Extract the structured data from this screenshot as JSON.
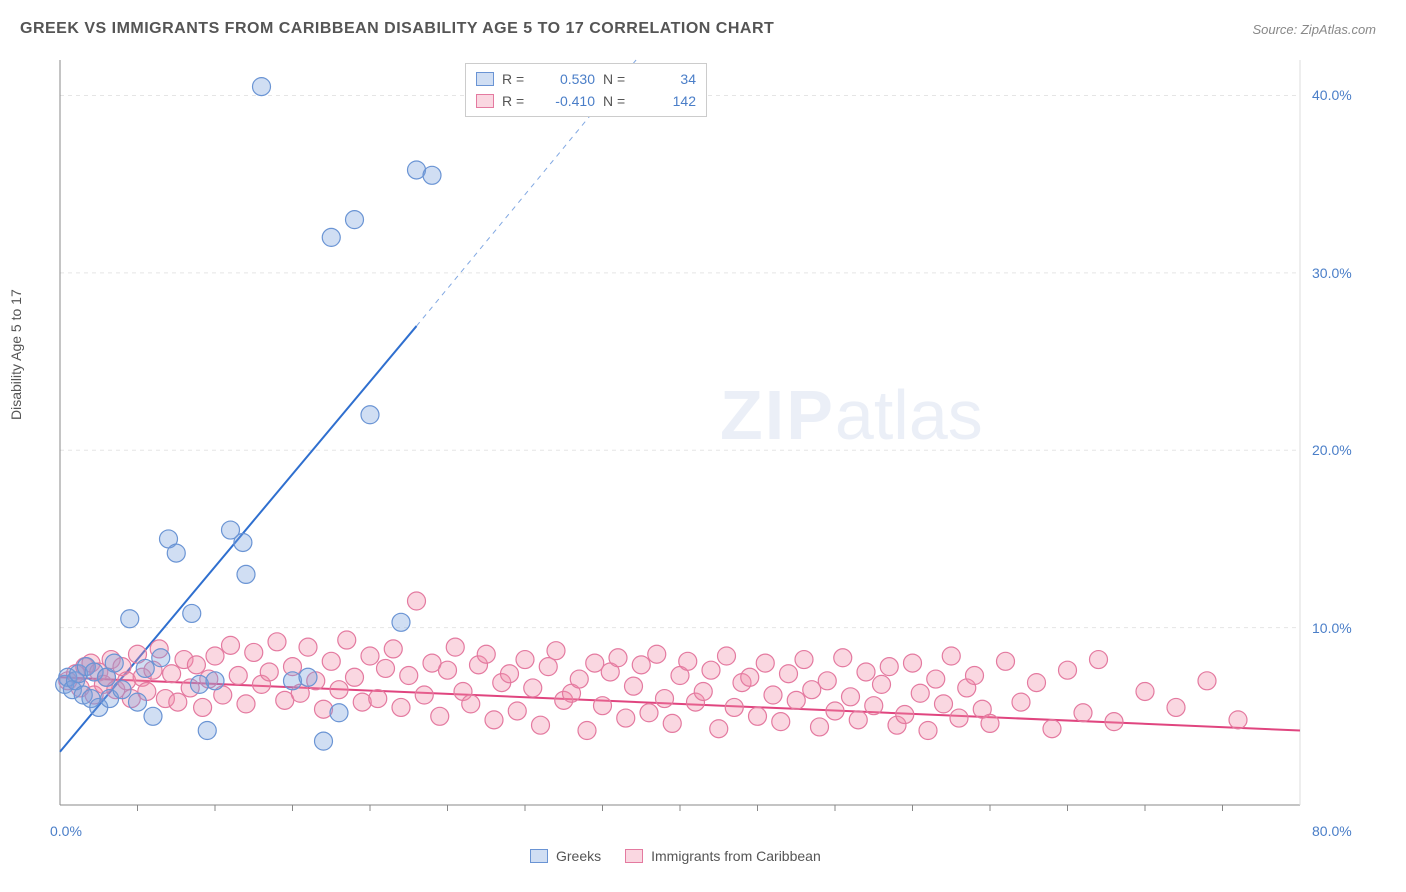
{
  "title": "GREEK VS IMMIGRANTS FROM CARIBBEAN DISABILITY AGE 5 TO 17 CORRELATION CHART",
  "source": "Source: ZipAtlas.com",
  "y_axis_label": "Disability Age 5 to 17",
  "watermark_zip": "ZIP",
  "watermark_atlas": "atlas",
  "chart": {
    "type": "scatter-with-regression",
    "xlim": [
      0,
      80
    ],
    "ylim": [
      0,
      42
    ],
    "x_ticks": [
      0,
      80
    ],
    "x_tick_labels": [
      "0.0%",
      "80.0%"
    ],
    "y_ticks": [
      10,
      20,
      30,
      40
    ],
    "y_tick_labels": [
      "10.0%",
      "20.0%",
      "30.0%",
      "40.0%"
    ],
    "x_minor_ticks": [
      5,
      10,
      15,
      20,
      25,
      30,
      35,
      40,
      45,
      50,
      55,
      60,
      65,
      70,
      75
    ],
    "background_color": "#ffffff",
    "grid_color": "#e5e5e5",
    "axis_color": "#888888",
    "tick_label_color": "#4a7ec8",
    "marker_radius": 9,
    "marker_stroke_width": 1.2,
    "series": {
      "greeks": {
        "label": "Greeks",
        "color_fill": "rgba(120,160,220,0.35)",
        "color_stroke": "#6a94d4",
        "r_value": "0.530",
        "n_value": "34",
        "regression": {
          "x1": 0,
          "y1": 3.0,
          "x2": 23,
          "y2": 27.0,
          "dashed_x2": 40,
          "dashed_y2": 45,
          "stroke": "#2f6fcf",
          "stroke_width": 2
        },
        "points": [
          [
            0.3,
            6.8
          ],
          [
            0.5,
            7.2
          ],
          [
            0.8,
            6.5
          ],
          [
            1.0,
            7.0
          ],
          [
            1.2,
            7.4
          ],
          [
            1.5,
            6.2
          ],
          [
            1.7,
            7.8
          ],
          [
            2.0,
            6.0
          ],
          [
            2.2,
            7.5
          ],
          [
            2.5,
            5.5
          ],
          [
            3.0,
            7.2
          ],
          [
            3.2,
            6.0
          ],
          [
            3.5,
            8.0
          ],
          [
            4.0,
            6.5
          ],
          [
            4.5,
            10.5
          ],
          [
            5.0,
            5.8
          ],
          [
            5.5,
            7.7
          ],
          [
            6.0,
            5.0
          ],
          [
            6.5,
            8.3
          ],
          [
            7.0,
            15.0
          ],
          [
            7.5,
            14.2
          ],
          [
            8.5,
            10.8
          ],
          [
            9.0,
            6.8
          ],
          [
            9.5,
            4.2
          ],
          [
            10.0,
            7.0
          ],
          [
            11.0,
            15.5
          ],
          [
            11.8,
            14.8
          ],
          [
            12.0,
            13.0
          ],
          [
            13.0,
            40.5
          ],
          [
            15.0,
            7.0
          ],
          [
            16.0,
            7.2
          ],
          [
            17.0,
            3.6
          ],
          [
            17.5,
            32.0
          ],
          [
            18.0,
            5.2
          ],
          [
            19.0,
            33.0
          ],
          [
            20.0,
            22.0
          ],
          [
            22.0,
            10.3
          ],
          [
            23.0,
            35.8
          ],
          [
            24.0,
            35.5
          ]
        ]
      },
      "caribbean": {
        "label": "Immigrants from Caribbean",
        "color_fill": "rgba(240,140,170,0.35)",
        "color_stroke": "#e47aa0",
        "r_value": "-0.410",
        "n_value": "142",
        "regression": {
          "x1": 0,
          "y1": 7.2,
          "x2": 80,
          "y2": 4.2,
          "stroke": "#e0457f",
          "stroke_width": 2
        },
        "points": [
          [
            0.5,
            7.0
          ],
          [
            1.0,
            7.4
          ],
          [
            1.3,
            6.6
          ],
          [
            1.6,
            7.8
          ],
          [
            2.0,
            8.0
          ],
          [
            2.2,
            6.2
          ],
          [
            2.5,
            7.5
          ],
          [
            2.8,
            6.8
          ],
          [
            3.0,
            7.2
          ],
          [
            3.3,
            8.2
          ],
          [
            3.6,
            6.5
          ],
          [
            4.0,
            7.8
          ],
          [
            4.3,
            7.0
          ],
          [
            4.6,
            6.0
          ],
          [
            5.0,
            8.5
          ],
          [
            5.3,
            7.2
          ],
          [
            5.6,
            6.4
          ],
          [
            6.0,
            7.6
          ],
          [
            6.4,
            8.8
          ],
          [
            6.8,
            6.0
          ],
          [
            7.2,
            7.4
          ],
          [
            7.6,
            5.8
          ],
          [
            8.0,
            8.2
          ],
          [
            8.4,
            6.6
          ],
          [
            8.8,
            7.9
          ],
          [
            9.2,
            5.5
          ],
          [
            9.6,
            7.1
          ],
          [
            10.0,
            8.4
          ],
          [
            10.5,
            6.2
          ],
          [
            11.0,
            9.0
          ],
          [
            11.5,
            7.3
          ],
          [
            12.0,
            5.7
          ],
          [
            12.5,
            8.6
          ],
          [
            13.0,
            6.8
          ],
          [
            13.5,
            7.5
          ],
          [
            14.0,
            9.2
          ],
          [
            14.5,
            5.9
          ],
          [
            15.0,
            7.8
          ],
          [
            15.5,
            6.3
          ],
          [
            16.0,
            8.9
          ],
          [
            16.5,
            7.0
          ],
          [
            17.0,
            5.4
          ],
          [
            17.5,
            8.1
          ],
          [
            18.0,
            6.5
          ],
          [
            18.5,
            9.3
          ],
          [
            19.0,
            7.2
          ],
          [
            19.5,
            5.8
          ],
          [
            20.0,
            8.4
          ],
          [
            20.5,
            6.0
          ],
          [
            21.0,
            7.7
          ],
          [
            21.5,
            8.8
          ],
          [
            22.0,
            5.5
          ],
          [
            22.5,
            7.3
          ],
          [
            23.0,
            11.5
          ],
          [
            23.5,
            6.2
          ],
          [
            24.0,
            8.0
          ],
          [
            24.5,
            5.0
          ],
          [
            25.0,
            7.6
          ],
          [
            25.5,
            8.9
          ],
          [
            26.0,
            6.4
          ],
          [
            26.5,
            5.7
          ],
          [
            27.0,
            7.9
          ],
          [
            27.5,
            8.5
          ],
          [
            28.0,
            4.8
          ],
          [
            28.5,
            6.9
          ],
          [
            29.0,
            7.4
          ],
          [
            29.5,
            5.3
          ],
          [
            30.0,
            8.2
          ],
          [
            30.5,
            6.6
          ],
          [
            31.0,
            4.5
          ],
          [
            31.5,
            7.8
          ],
          [
            32.0,
            8.7
          ],
          [
            32.5,
            5.9
          ],
          [
            33.0,
            6.3
          ],
          [
            33.5,
            7.1
          ],
          [
            34.0,
            4.2
          ],
          [
            34.5,
            8.0
          ],
          [
            35.0,
            5.6
          ],
          [
            35.5,
            7.5
          ],
          [
            36.0,
            8.3
          ],
          [
            36.5,
            4.9
          ],
          [
            37.0,
            6.7
          ],
          [
            37.5,
            7.9
          ],
          [
            38.0,
            5.2
          ],
          [
            38.5,
            8.5
          ],
          [
            39.0,
            6.0
          ],
          [
            39.5,
            4.6
          ],
          [
            40.0,
            7.3
          ],
          [
            40.5,
            8.1
          ],
          [
            41.0,
            5.8
          ],
          [
            41.5,
            6.4
          ],
          [
            42.0,
            7.6
          ],
          [
            42.5,
            4.3
          ],
          [
            43.0,
            8.4
          ],
          [
            43.5,
            5.5
          ],
          [
            44.0,
            6.9
          ],
          [
            44.5,
            7.2
          ],
          [
            45.0,
            5.0
          ],
          [
            45.5,
            8.0
          ],
          [
            46.0,
            6.2
          ],
          [
            46.5,
            4.7
          ],
          [
            47.0,
            7.4
          ],
          [
            47.5,
            5.9
          ],
          [
            48.0,
            8.2
          ],
          [
            48.5,
            6.5
          ],
          [
            49.0,
            4.4
          ],
          [
            49.5,
            7.0
          ],
          [
            50.0,
            5.3
          ],
          [
            50.5,
            8.3
          ],
          [
            51.0,
            6.1
          ],
          [
            51.5,
            4.8
          ],
          [
            52.0,
            7.5
          ],
          [
            52.5,
            5.6
          ],
          [
            53.0,
            6.8
          ],
          [
            53.5,
            7.8
          ],
          [
            54.0,
            4.5
          ],
          [
            54.5,
            5.1
          ],
          [
            55.0,
            8.0
          ],
          [
            55.5,
            6.3
          ],
          [
            56.0,
            4.2
          ],
          [
            56.5,
            7.1
          ],
          [
            57.0,
            5.7
          ],
          [
            57.5,
            8.4
          ],
          [
            58.0,
            4.9
          ],
          [
            58.5,
            6.6
          ],
          [
            59.0,
            7.3
          ],
          [
            59.5,
            5.4
          ],
          [
            60.0,
            4.6
          ],
          [
            61.0,
            8.1
          ],
          [
            62.0,
            5.8
          ],
          [
            63.0,
            6.9
          ],
          [
            64.0,
            4.3
          ],
          [
            65.0,
            7.6
          ],
          [
            66.0,
            5.2
          ],
          [
            67.0,
            8.2
          ],
          [
            68.0,
            4.7
          ],
          [
            70.0,
            6.4
          ],
          [
            72.0,
            5.5
          ],
          [
            74.0,
            7.0
          ],
          [
            76.0,
            4.8
          ]
        ]
      }
    }
  },
  "legend_top": {
    "r_label": "R =",
    "n_label": "N ="
  },
  "legend_bottom": {
    "series1": "Greeks",
    "series2": "Immigrants from Caribbean"
  }
}
